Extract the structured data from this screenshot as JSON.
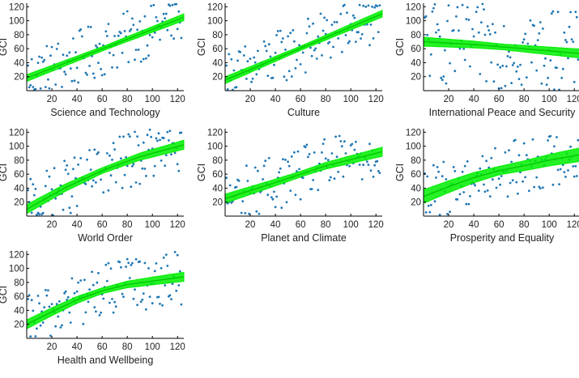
{
  "chart_data": {
    "type": "scatter",
    "xlim": [
      0,
      125
    ],
    "ylim": [
      0,
      125
    ],
    "xticks": [
      20,
      40,
      60,
      80,
      100,
      120
    ],
    "yticks": [
      20,
      40,
      60,
      80,
      100,
      120
    ],
    "point_color": "#1f77b4",
    "fit_color": "#00ee00",
    "grid": false,
    "panels": [
      {
        "xlabel": "Science and Technology",
        "ylabel": "GCI",
        "fit": [
          [
            0,
            18
          ],
          [
            125,
            105
          ]
        ],
        "band": 3
      },
      {
        "xlabel": "Culture",
        "ylabel": "GCI",
        "fit": [
          [
            0,
            15
          ],
          [
            125,
            110
          ]
        ],
        "band": 3
      },
      {
        "xlabel": "International Peace and Security",
        "ylabel": "GCI",
        "fit": [
          [
            0,
            70
          ],
          [
            40,
            66
          ],
          [
            80,
            60
          ],
          [
            125,
            53
          ]
        ],
        "band": 4
      },
      {
        "xlabel": "World Order",
        "ylabel": "GCI",
        "fit": [
          [
            0,
            10
          ],
          [
            30,
            40
          ],
          [
            60,
            65
          ],
          [
            90,
            85
          ],
          [
            125,
            102
          ]
        ],
        "band": 4
      },
      {
        "xlabel": "Planet and Climate",
        "ylabel": "GCI",
        "fit": [
          [
            0,
            25
          ],
          [
            40,
            48
          ],
          [
            80,
            72
          ],
          [
            125,
            92
          ]
        ],
        "band": 4
      },
      {
        "xlabel": "Prosperity and Equality",
        "ylabel": "GCI",
        "fit": [
          [
            0,
            28
          ],
          [
            20,
            42
          ],
          [
            40,
            55
          ],
          [
            60,
            65
          ],
          [
            80,
            72
          ],
          [
            100,
            80
          ],
          [
            125,
            88
          ]
        ],
        "band": 6
      },
      {
        "xlabel": "Health and Wellbeing",
        "ylabel": "GCI",
        "fit": [
          [
            0,
            20
          ],
          [
            20,
            38
          ],
          [
            40,
            55
          ],
          [
            60,
            68
          ],
          [
            80,
            77
          ],
          [
            100,
            82
          ],
          [
            125,
            88
          ]
        ],
        "band": 4
      }
    ]
  }
}
